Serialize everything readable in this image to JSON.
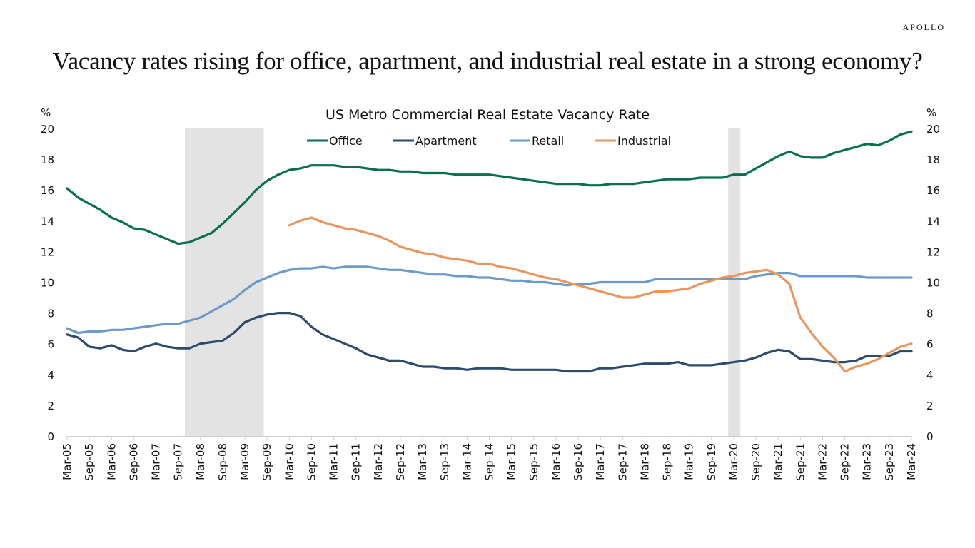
{
  "brand": "APOLLO",
  "headline": "Vacancy rates rising for office, apartment, and industrial real estate in a strong economy?",
  "chart_data": {
    "type": "line",
    "title": "US Metro Commercial Real Estate Vacancy Rate",
    "ylabel_left": "%",
    "ylabel_right": "%",
    "xlabel": "",
    "ylim": [
      0,
      20
    ],
    "yticks": [
      0,
      2,
      4,
      6,
      8,
      10,
      12,
      14,
      16,
      18,
      20
    ],
    "grid": false,
    "legend_position": "top-center",
    "frequency": "quarterly",
    "x_start": "Mar-05",
    "x_end": "Mar-24",
    "xtick_labels": [
      "Mar-05",
      "Sep-05",
      "Mar-06",
      "Sep-06",
      "Mar-07",
      "Sep-07",
      "Mar-08",
      "Sep-08",
      "Mar-09",
      "Sep-09",
      "Mar-10",
      "Sep-10",
      "Mar-11",
      "Sep-11",
      "Mar-12",
      "Sep-12",
      "Mar-13",
      "Sep-13",
      "Mar-14",
      "Sep-14",
      "Mar-15",
      "Sep-15",
      "Mar-16",
      "Sep-16",
      "Mar-17",
      "Sep-17",
      "Mar-18",
      "Sep-18",
      "Mar-19",
      "Sep-19",
      "Mar-20",
      "Sep-20",
      "Mar-21",
      "Sep-21",
      "Mar-22",
      "Sep-22",
      "Mar-23",
      "Sep-23",
      "Mar-24"
    ],
    "recession_shading": [
      {
        "start_quarter_index": 10.6,
        "end_quarter_index": 17.7
      },
      {
        "start_quarter_index": 59.5,
        "end_quarter_index": 60.6
      }
    ],
    "recession_color": "#e3e3e3",
    "series": [
      {
        "name": "Office",
        "color": "#0b6e4f",
        "values": [
          16.1,
          15.5,
          15.1,
          14.7,
          14.2,
          13.9,
          13.5,
          13.4,
          13.1,
          12.8,
          12.5,
          12.6,
          12.9,
          13.2,
          13.8,
          14.5,
          15.2,
          16.0,
          16.6,
          17.0,
          17.3,
          17.4,
          17.6,
          17.6,
          17.6,
          17.5,
          17.5,
          17.4,
          17.3,
          17.3,
          17.2,
          17.2,
          17.1,
          17.1,
          17.1,
          17.0,
          17.0,
          17.0,
          17.0,
          16.9,
          16.8,
          16.7,
          16.6,
          16.5,
          16.4,
          16.4,
          16.4,
          16.3,
          16.3,
          16.4,
          16.4,
          16.4,
          16.5,
          16.6,
          16.7,
          16.7,
          16.7,
          16.8,
          16.8,
          16.8,
          17.0,
          17.0,
          17.4,
          17.8,
          18.2,
          18.5,
          18.2,
          18.1,
          18.1,
          18.4,
          18.6,
          18.8,
          19.0,
          18.9,
          19.2,
          19.6,
          19.8
        ]
      },
      {
        "name": "Apartment",
        "color": "#2f4b6c",
        "values": [
          6.6,
          6.4,
          5.8,
          5.7,
          5.9,
          5.6,
          5.5,
          5.8,
          6.0,
          5.8,
          5.7,
          5.7,
          6.0,
          6.1,
          6.2,
          6.7,
          7.4,
          7.7,
          7.9,
          8.0,
          8.0,
          7.8,
          7.1,
          6.6,
          6.3,
          6.0,
          5.7,
          5.3,
          5.1,
          4.9,
          4.9,
          4.7,
          4.5,
          4.5,
          4.4,
          4.4,
          4.3,
          4.4,
          4.4,
          4.4,
          4.3,
          4.3,
          4.3,
          4.3,
          4.3,
          4.2,
          4.2,
          4.2,
          4.4,
          4.4,
          4.5,
          4.6,
          4.7,
          4.7,
          4.7,
          4.8,
          4.6,
          4.6,
          4.6,
          4.7,
          4.8,
          4.9,
          5.1,
          5.4,
          5.6,
          5.5,
          5.0,
          5.0,
          4.9,
          4.8,
          4.8,
          4.9,
          5.2,
          5.2,
          5.2,
          5.5,
          5.5
        ]
      },
      {
        "name": "Retail",
        "color": "#6c9bc9",
        "values": [
          7.0,
          6.7,
          6.8,
          6.8,
          6.9,
          6.9,
          7.0,
          7.1,
          7.2,
          7.3,
          7.3,
          7.5,
          7.7,
          8.1,
          8.5,
          8.9,
          9.5,
          10.0,
          10.3,
          10.6,
          10.8,
          10.9,
          10.9,
          11.0,
          10.9,
          11.0,
          11.0,
          11.0,
          10.9,
          10.8,
          10.8,
          10.7,
          10.6,
          10.5,
          10.5,
          10.4,
          10.4,
          10.3,
          10.3,
          10.2,
          10.1,
          10.1,
          10.0,
          10.0,
          9.9,
          9.8,
          9.9,
          9.9,
          10.0,
          10.0,
          10.0,
          10.0,
          10.0,
          10.2,
          10.2,
          10.2,
          10.2,
          10.2,
          10.2,
          10.2,
          10.2,
          10.2,
          10.4,
          10.5,
          10.6,
          10.6,
          10.4,
          10.4,
          10.4,
          10.4,
          10.4,
          10.4,
          10.3,
          10.3,
          10.3,
          10.3,
          10.3
        ]
      },
      {
        "name": "Industrial",
        "color": "#e8965f",
        "values": [
          null,
          null,
          null,
          null,
          null,
          null,
          null,
          null,
          null,
          null,
          null,
          null,
          null,
          null,
          null,
          null,
          null,
          null,
          null,
          null,
          13.7,
          14.0,
          14.2,
          13.9,
          13.7,
          13.5,
          13.4,
          13.2,
          13.0,
          12.7,
          12.3,
          12.1,
          11.9,
          11.8,
          11.6,
          11.5,
          11.4,
          11.2,
          11.2,
          11.0,
          10.9,
          10.7,
          10.5,
          10.3,
          10.2,
          10.0,
          9.8,
          9.6,
          9.4,
          9.2,
          9.0,
          9.0,
          9.2,
          9.4,
          9.4,
          9.5,
          9.6,
          9.9,
          10.1,
          10.3,
          10.4,
          10.6,
          10.7,
          10.8,
          10.5,
          9.9,
          7.7,
          6.7,
          5.8,
          5.1,
          4.2,
          4.5,
          4.7,
          5.0,
          5.4,
          5.8,
          6.0
        ]
      }
    ]
  }
}
